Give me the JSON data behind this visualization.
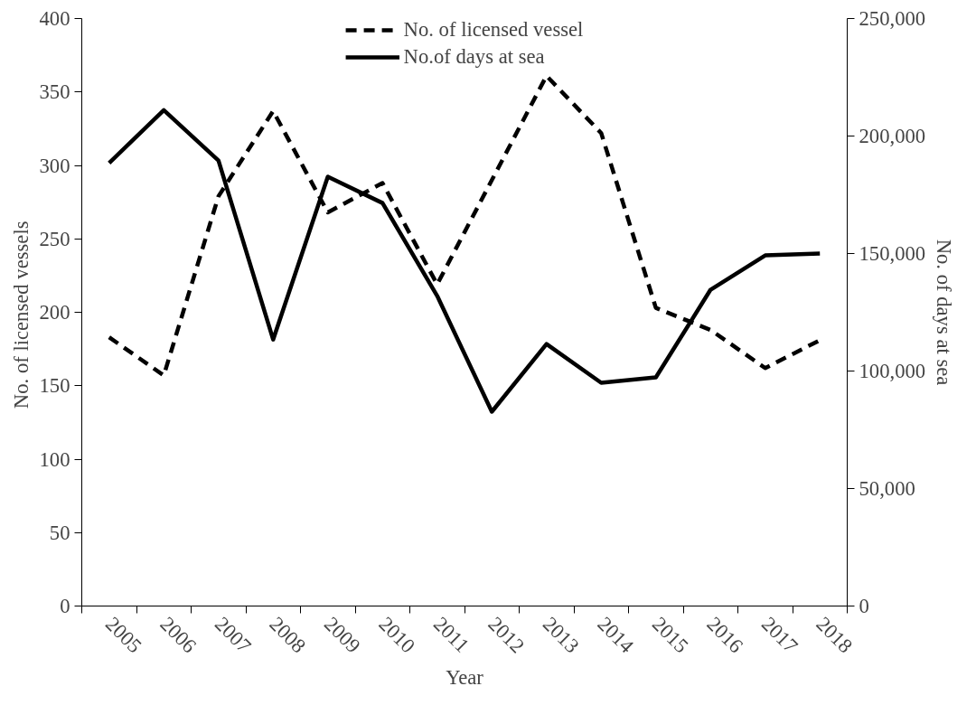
{
  "chart_data": {
    "type": "line",
    "xlabel": "Year",
    "ylabel": "No. of  licensed vessels",
    "y2label": "No. of days at sea",
    "categories": [
      "2005",
      "2006",
      "2007",
      "2008",
      "2009",
      "2010",
      "2011",
      "2012",
      "2013",
      "2014",
      "2015",
      "2016",
      "2017",
      "2018"
    ],
    "series": [
      {
        "name": "No. of licensed vessel",
        "color": "#000000",
        "line_style": "dashed",
        "values": [
          183,
          157,
          279,
          337,
          268,
          288,
          219,
          290,
          361,
          322,
          203,
          188,
          162,
          181
        ]
      },
      {
        "name": "No.of days at sea",
        "color": "#000000",
        "line_style": "solid",
        "axis": "y2",
        "values": [
          188500,
          211000,
          189600,
          113400,
          182700,
          171500,
          132000,
          82700,
          111500,
          95000,
          97300,
          134600,
          149200,
          150000
        ]
      }
    ],
    "ylim": [
      0,
      400
    ],
    "yticks": [
      0,
      50,
      100,
      150,
      200,
      250,
      300,
      350,
      400
    ],
    "y2lim": [
      0,
      250000
    ],
    "y2ticks": [
      {
        "value": 0,
        "label": "0"
      },
      {
        "value": 50000,
        "label": "50,000"
      },
      {
        "value": 100000,
        "label": "100,000"
      },
      {
        "value": 150000,
        "label": "150,000"
      },
      {
        "value": 200000,
        "label": "200,000"
      },
      {
        "value": 250000,
        "label": "250,000"
      }
    ],
    "grid": false,
    "legend": "top",
    "marker": "none"
  }
}
